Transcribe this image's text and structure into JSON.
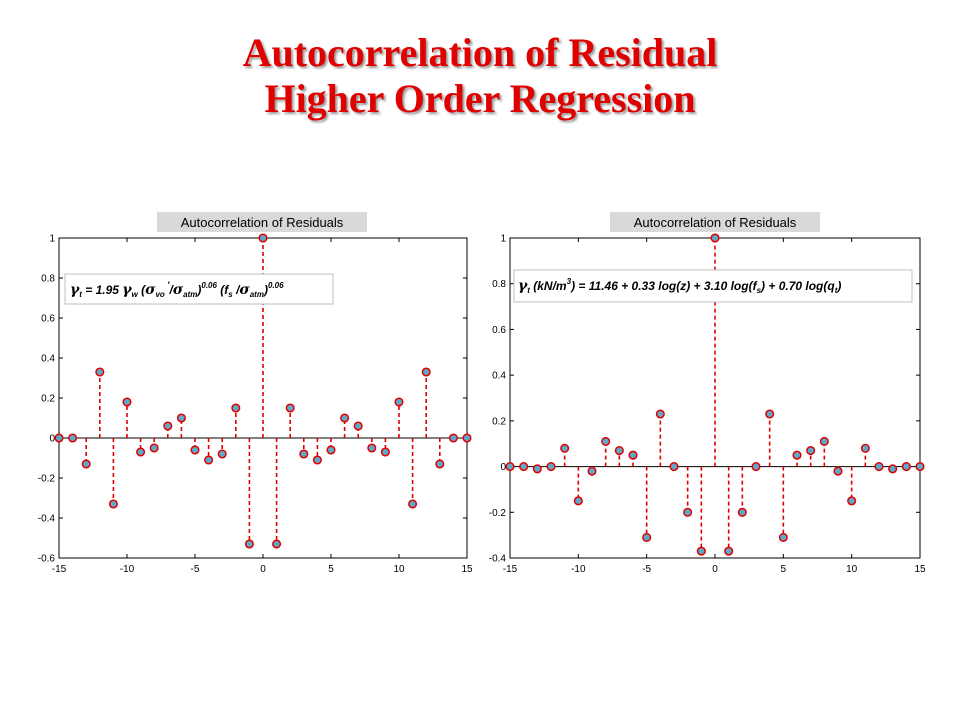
{
  "slide": {
    "title_line1": "Autocorrelation of Residual",
    "title_line2": "Higher Order Regression"
  },
  "colors": {
    "title": "#e00000",
    "stem": "#e00000",
    "marker_fill": "#5fa8c9",
    "title_box": "#d9d9d9"
  },
  "chart_data": [
    {
      "type": "stem",
      "title": "Autocorrelation of Residuals",
      "equation": "γt = 1.95 γw (σvo′/σatm)^0.06 (fs/σatm)^0.06",
      "xlim": [
        -15,
        15
      ],
      "ylim": [
        -0.6,
        1
      ],
      "xticks": [
        "-15",
        "-10",
        "-5",
        "0",
        "5",
        "10",
        "15"
      ],
      "yticks": [
        "1",
        "0.8",
        "0.6",
        "0.4",
        "0.2",
        "0",
        "-0.2",
        "-0.4",
        "-0.6"
      ],
      "x": [
        -15,
        -14,
        -13,
        -12,
        -11,
        -10,
        -9,
        -8,
        -7,
        -6,
        -5,
        -4,
        -3,
        -2,
        -1,
        0,
        1,
        2,
        3,
        4,
        5,
        6,
        7,
        8,
        9,
        10,
        11,
        12,
        13,
        14,
        15
      ],
      "values": [
        0,
        0,
        -0.13,
        0.33,
        -0.33,
        0.18,
        -0.07,
        -0.05,
        0.06,
        0.1,
        -0.06,
        -0.11,
        -0.08,
        0.15,
        -0.53,
        1.0,
        -0.53,
        0.15,
        -0.08,
        -0.11,
        -0.06,
        0.1,
        0.06,
        -0.05,
        -0.07,
        0.18,
        -0.33,
        0.33,
        -0.13,
        0,
        0
      ]
    },
    {
      "type": "stem",
      "title": "Autocorrelation of Residuals",
      "equation": "γt (kN/m³) = 11.46 + 0.33 log(z) + 3.10 log(fs) + 0.70 log(qt)",
      "xlim": [
        -15,
        15
      ],
      "ylim": [
        -0.4,
        1
      ],
      "xticks": [
        "-15",
        "-10",
        "-5",
        "0",
        "5",
        "10",
        "15"
      ],
      "yticks": [
        "1",
        "0.8",
        "0.6",
        "0.4",
        "0.2",
        "0",
        "-0.2",
        "-0.4"
      ],
      "x": [
        -15,
        -14,
        -13,
        -12,
        -11,
        -10,
        -9,
        -8,
        -7,
        -6,
        -5,
        -4,
        -3,
        -2,
        -1,
        0,
        1,
        2,
        3,
        4,
        5,
        6,
        7,
        8,
        9,
        10,
        11,
        12,
        13,
        14,
        15
      ],
      "values": [
        0,
        0,
        -0.01,
        0,
        0.08,
        -0.15,
        -0.02,
        0.11,
        0.07,
        0.05,
        -0.31,
        0.23,
        0,
        -0.2,
        -0.37,
        1.0,
        -0.37,
        -0.2,
        0,
        0.23,
        -0.31,
        0.05,
        0.07,
        0.11,
        -0.02,
        -0.15,
        0.08,
        0,
        -0.01,
        0,
        0
      ]
    }
  ]
}
